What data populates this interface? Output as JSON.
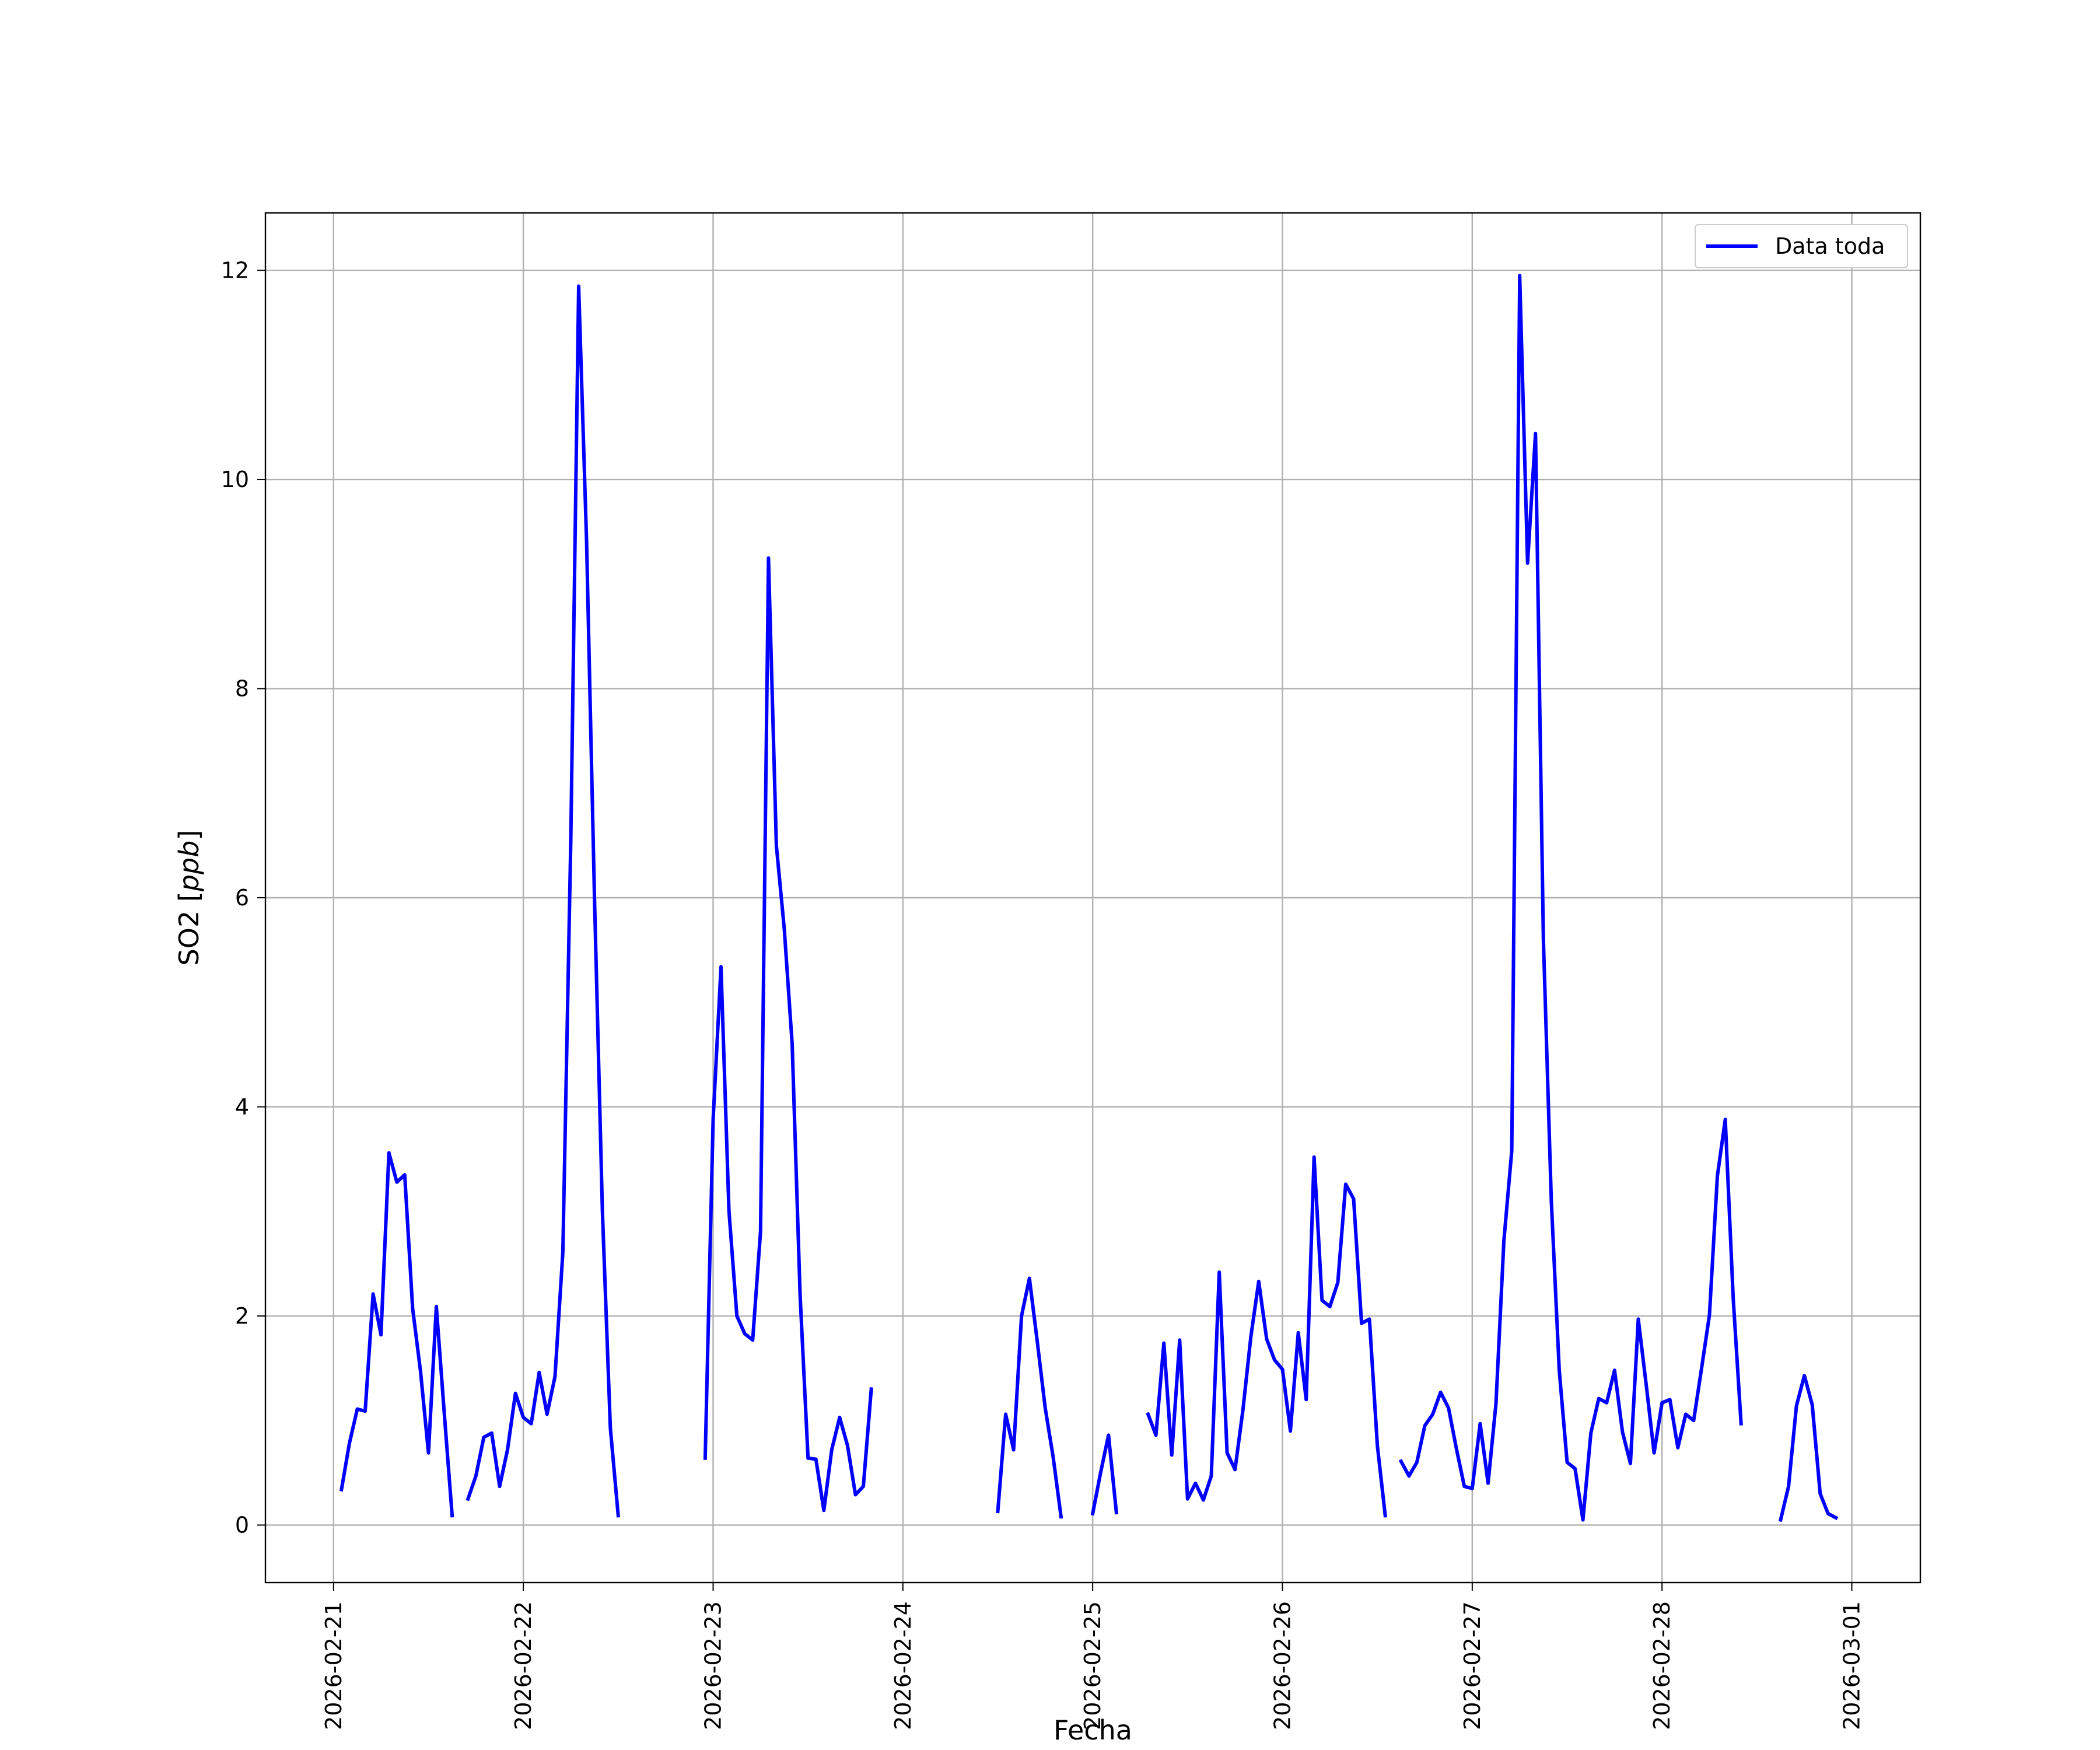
{
  "chart_data": {
    "type": "line",
    "title": "",
    "xlabel": "Fecha",
    "ylabel": "SO2 [ppb]",
    "ylabel_main": "SO2 [",
    "ylabel_unit": "ppb",
    "ylabel_close": "]",
    "ylim": [
      -0.55,
      12.55
    ],
    "xlim": [
      "2026-02-20T15:23",
      "2026-03-01T08:40"
    ],
    "grid": true,
    "legend_position": "top-right",
    "x_ticks": [
      "2026-02-21",
      "2026-02-22",
      "2026-02-23",
      "2026-02-24",
      "2026-02-25",
      "2026-02-26",
      "2026-02-27",
      "2026-02-28",
      "2026-03-01"
    ],
    "y_ticks": [
      0,
      2,
      4,
      6,
      8,
      10,
      12
    ],
    "series": [
      {
        "name": "Data toda",
        "color": "#0000ff",
        "segments": [
          [
            [
              "2026-02-21T01:00",
              0.34
            ],
            [
              "2026-02-21T02:00",
              0.78
            ],
            [
              "2026-02-21T03:00",
              1.11
            ],
            [
              "2026-02-21T04:00",
              1.09
            ],
            [
              "2026-02-21T05:00",
              2.21
            ],
            [
              "2026-02-21T06:00",
              1.82
            ],
            [
              "2026-02-21T07:00",
              3.56
            ],
            [
              "2026-02-21T08:00",
              3.28
            ],
            [
              "2026-02-21T09:00",
              3.35
            ],
            [
              "2026-02-21T10:00",
              2.07
            ],
            [
              "2026-02-21T11:00",
              1.47
            ],
            [
              "2026-02-21T12:00",
              0.69
            ],
            [
              "2026-02-21T13:00",
              2.09
            ],
            [
              "2026-02-21T14:00",
              1.07
            ],
            [
              "2026-02-21T15:00",
              0.09
            ]
          ],
          [
            [
              "2026-02-21T17:00",
              0.25
            ],
            [
              "2026-02-21T18:00",
              0.47
            ],
            [
              "2026-02-21T19:00",
              0.84
            ],
            [
              "2026-02-21T20:00",
              0.88
            ],
            [
              "2026-02-21T21:00",
              0.37
            ],
            [
              "2026-02-21T22:00",
              0.72
            ],
            [
              "2026-02-21T23:00",
              1.26
            ],
            [
              "2026-02-22T00:00",
              1.03
            ],
            [
              "2026-02-22T01:00",
              0.97
            ],
            [
              "2026-02-22T02:00",
              1.46
            ],
            [
              "2026-02-22T03:00",
              1.06
            ],
            [
              "2026-02-22T04:00",
              1.42
            ],
            [
              "2026-02-22T05:00",
              2.61
            ],
            [
              "2026-02-22T06:00",
              6.55
            ],
            [
              "2026-02-22T07:00",
              11.85
            ],
            [
              "2026-02-22T08:00",
              9.4
            ],
            [
              "2026-02-22T09:00",
              6.0
            ],
            [
              "2026-02-22T10:00",
              3.0
            ],
            [
              "2026-02-22T11:00",
              0.93
            ],
            [
              "2026-02-22T12:00",
              0.09
            ]
          ],
          [
            [
              "2026-02-22T23:00",
              0.64
            ],
            [
              "2026-02-23T00:00",
              3.88
            ],
            [
              "2026-02-23T01:00",
              5.34
            ],
            [
              "2026-02-23T02:00",
              3.01
            ],
            [
              "2026-02-23T03:00",
              2.0
            ],
            [
              "2026-02-23T04:00",
              1.83
            ],
            [
              "2026-02-23T05:00",
              1.77
            ],
            [
              "2026-02-23T06:00",
              2.81
            ],
            [
              "2026-02-23T07:00",
              9.25
            ],
            [
              "2026-02-23T08:00",
              6.5
            ],
            [
              "2026-02-23T09:00",
              5.7
            ],
            [
              "2026-02-23T10:00",
              4.6
            ],
            [
              "2026-02-23T11:00",
              2.2
            ],
            [
              "2026-02-23T12:00",
              0.64
            ],
            [
              "2026-02-23T13:00",
              0.63
            ],
            [
              "2026-02-23T14:00",
              0.14
            ],
            [
              "2026-02-23T15:00",
              0.72
            ],
            [
              "2026-02-23T16:00",
              1.03
            ],
            [
              "2026-02-23T17:00",
              0.76
            ],
            [
              "2026-02-23T18:00",
              0.29
            ],
            [
              "2026-02-23T19:00",
              0.37
            ],
            [
              "2026-02-23T20:00",
              1.3
            ]
          ],
          [
            [
              "2026-02-24T12:00",
              0.13
            ],
            [
              "2026-02-24T13:00",
              1.06
            ],
            [
              "2026-02-24T14:00",
              0.72
            ],
            [
              "2026-02-24T15:00",
              2.0
            ],
            [
              "2026-02-24T16:00",
              2.36
            ],
            [
              "2026-02-24T17:00",
              1.75
            ],
            [
              "2026-02-24T18:00",
              1.12
            ],
            [
              "2026-02-24T19:00",
              0.65
            ],
            [
              "2026-02-24T20:00",
              0.08
            ]
          ],
          [
            [
              "2026-02-25T00:00",
              0.11
            ],
            [
              "2026-02-25T01:00",
              0.5
            ],
            [
              "2026-02-25T02:00",
              0.86
            ],
            [
              "2026-02-25T03:00",
              0.12
            ]
          ],
          [
            [
              "2026-02-25T07:00",
              1.06
            ],
            [
              "2026-02-25T08:00",
              0.86
            ],
            [
              "2026-02-25T09:00",
              1.74
            ],
            [
              "2026-02-25T10:00",
              0.67
            ],
            [
              "2026-02-25T11:00",
              1.77
            ],
            [
              "2026-02-25T12:00",
              0.25
            ],
            [
              "2026-02-25T13:00",
              0.4
            ],
            [
              "2026-02-25T14:00",
              0.24
            ],
            [
              "2026-02-25T15:00",
              0.47
            ],
            [
              "2026-02-25T16:00",
              2.42
            ],
            [
              "2026-02-25T17:00",
              0.69
            ],
            [
              "2026-02-25T18:00",
              0.53
            ],
            [
              "2026-02-25T19:00",
              1.1
            ],
            [
              "2026-02-25T20:00",
              1.8
            ],
            [
              "2026-02-25T21:00",
              2.33
            ],
            [
              "2026-02-25T22:00",
              1.78
            ],
            [
              "2026-02-25T23:00",
              1.58
            ],
            [
              "2026-02-26T00:00",
              1.49
            ],
            [
              "2026-02-26T01:00",
              0.9
            ],
            [
              "2026-02-26T02:00",
              1.84
            ],
            [
              "2026-02-26T03:00",
              1.2
            ],
            [
              "2026-02-26T04:00",
              3.52
            ],
            [
              "2026-02-26T05:00",
              2.15
            ],
            [
              "2026-02-26T06:00",
              2.09
            ],
            [
              "2026-02-26T07:00",
              2.32
            ],
            [
              "2026-02-26T08:00",
              3.26
            ],
            [
              "2026-02-26T09:00",
              3.12
            ],
            [
              "2026-02-26T10:00",
              1.93
            ],
            [
              "2026-02-26T11:00",
              1.97
            ],
            [
              "2026-02-26T12:00",
              0.76
            ],
            [
              "2026-02-26T13:00",
              0.09
            ]
          ],
          [
            [
              "2026-02-26T15:00",
              0.61
            ],
            [
              "2026-02-26T16:00",
              0.47
            ],
            [
              "2026-02-26T17:00",
              0.6
            ],
            [
              "2026-02-26T18:00",
              0.95
            ],
            [
              "2026-02-26T19:00",
              1.06
            ],
            [
              "2026-02-26T20:00",
              1.27
            ],
            [
              "2026-02-26T21:00",
              1.12
            ],
            [
              "2026-02-26T22:00",
              0.73
            ],
            [
              "2026-02-26T23:00",
              0.37
            ],
            [
              "2026-02-27T00:00",
              0.35
            ],
            [
              "2026-02-27T01:00",
              0.97
            ],
            [
              "2026-02-27T02:00",
              0.4
            ],
            [
              "2026-02-27T03:00",
              1.16
            ],
            [
              "2026-02-27T04:00",
              2.72
            ],
            [
              "2026-02-27T05:00",
              3.58
            ],
            [
              "2026-02-27T06:00",
              11.95
            ],
            [
              "2026-02-27T07:00",
              9.2
            ],
            [
              "2026-02-27T08:00",
              10.44
            ],
            [
              "2026-02-27T09:00",
              5.6
            ],
            [
              "2026-02-27T10:00",
              3.1
            ],
            [
              "2026-02-27T11:00",
              1.48
            ],
            [
              "2026-02-27T12:00",
              0.6
            ],
            [
              "2026-02-27T13:00",
              0.54
            ],
            [
              "2026-02-27T14:00",
              0.05
            ],
            [
              "2026-02-27T15:00",
              0.88
            ],
            [
              "2026-02-27T16:00",
              1.21
            ],
            [
              "2026-02-27T17:00",
              1.17
            ],
            [
              "2026-02-27T18:00",
              1.48
            ],
            [
              "2026-02-27T19:00",
              0.89
            ],
            [
              "2026-02-27T20:00",
              0.59
            ],
            [
              "2026-02-27T21:00",
              1.97
            ],
            [
              "2026-02-27T22:00",
              1.34
            ],
            [
              "2026-02-27T23:00",
              0.69
            ],
            [
              "2026-02-28T00:00",
              1.17
            ],
            [
              "2026-02-28T01:00",
              1.2
            ],
            [
              "2026-02-28T02:00",
              0.74
            ],
            [
              "2026-02-28T03:00",
              1.06
            ],
            [
              "2026-02-28T04:00",
              1.0
            ],
            [
              "2026-02-28T05:00",
              1.5
            ],
            [
              "2026-02-28T06:00",
              2.01
            ],
            [
              "2026-02-28T07:00",
              3.34
            ],
            [
              "2026-02-28T08:00",
              3.88
            ],
            [
              "2026-02-28T09:00",
              2.17
            ],
            [
              "2026-02-28T10:00",
              0.97
            ]
          ],
          [
            [
              "2026-02-28T15:00",
              0.05
            ],
            [
              "2026-02-28T16:00",
              0.37
            ],
            [
              "2026-02-28T17:00",
              1.14
            ],
            [
              "2026-02-28T18:00",
              1.43
            ],
            [
              "2026-02-28T19:00",
              1.15
            ],
            [
              "2026-02-28T20:00",
              0.3
            ],
            [
              "2026-02-28T21:00",
              0.11
            ],
            [
              "2026-02-28T22:00",
              0.07
            ]
          ]
        ]
      }
    ]
  }
}
